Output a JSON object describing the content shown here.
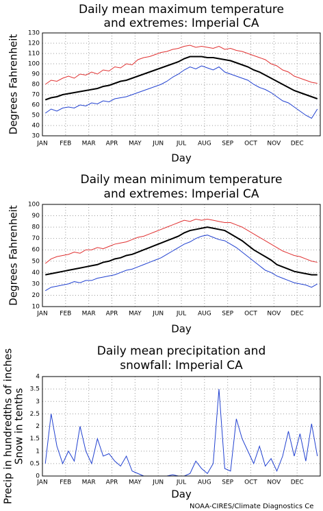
{
  "chart_data": [
    {
      "type": "line",
      "title": [
        "Daily mean maximum temperature",
        "and extremes: Imperial CA"
      ],
      "xlabel": "Day",
      "ylabel": [
        "Degrees Fahrenheit"
      ],
      "categories": [
        "JAN",
        null,
        null,
        null,
        "FEB",
        null,
        null,
        null,
        "MAR",
        null,
        null,
        null,
        "APR",
        null,
        null,
        null,
        "MAY",
        null,
        null,
        null,
        "JUN",
        null,
        null,
        null,
        "JUL",
        null,
        null,
        null,
        "AUG",
        null,
        null,
        null,
        "SEP",
        null,
        null,
        null,
        "OCT",
        null,
        null,
        null,
        "NOV",
        null,
        null,
        null,
        "DEC",
        null,
        null,
        null
      ],
      "ylim": [
        30,
        130
      ],
      "yticks": [
        30,
        40,
        50,
        60,
        70,
        80,
        90,
        100,
        110,
        120,
        130
      ],
      "grid": true,
      "series": [
        {
          "color": "#e03030",
          "values": [
            80,
            84,
            83,
            86,
            88,
            86,
            90,
            89,
            92,
            90,
            94,
            93,
            97,
            96,
            100,
            99,
            104,
            106,
            107,
            109,
            111,
            112,
            114,
            115,
            117,
            118,
            116,
            117,
            116,
            115,
            117,
            114,
            115,
            113,
            112,
            110,
            108,
            106,
            104,
            100,
            98,
            94,
            92,
            88,
            86,
            84,
            82,
            81
          ]
        },
        {
          "color": "#000000",
          "values": [
            65,
            67,
            68,
            70,
            71,
            72,
            73,
            74,
            75,
            76,
            78,
            79,
            81,
            83,
            84,
            86,
            88,
            90,
            92,
            94,
            96,
            98,
            100,
            102,
            105,
            107,
            107,
            107,
            106,
            106,
            105,
            104,
            103,
            101,
            99,
            97,
            94,
            92,
            89,
            86,
            83,
            80,
            77,
            74,
            72,
            70,
            68,
            66
          ]
        },
        {
          "color": "#2040d0",
          "values": [
            52,
            56,
            54,
            57,
            58,
            57,
            60,
            59,
            62,
            61,
            64,
            63,
            66,
            67,
            68,
            70,
            72,
            74,
            76,
            78,
            80,
            83,
            87,
            90,
            94,
            97,
            95,
            98,
            96,
            94,
            97,
            92,
            90,
            88,
            86,
            84,
            80,
            77,
            75,
            72,
            68,
            64,
            62,
            58,
            54,
            50,
            47,
            56
          ]
        }
      ]
    },
    {
      "type": "line",
      "title": [
        "Daily mean minimum temperature",
        "and extremes: Imperial CA"
      ],
      "xlabel": "Day",
      "ylabel": [
        "Degrees Fahrenheit"
      ],
      "categories": [
        "JAN",
        null,
        null,
        null,
        "FEB",
        null,
        null,
        null,
        "MAR",
        null,
        null,
        null,
        "APR",
        null,
        null,
        null,
        "MAY",
        null,
        null,
        null,
        "JUN",
        null,
        null,
        null,
        "JUL",
        null,
        null,
        null,
        "AUG",
        null,
        null,
        null,
        "SEP",
        null,
        null,
        null,
        "OCT",
        null,
        null,
        null,
        "NOV",
        null,
        null,
        null,
        "DEC",
        null,
        null,
        null
      ],
      "ylim": [
        10,
        100
      ],
      "yticks": [
        10,
        20,
        30,
        40,
        50,
        60,
        70,
        80,
        90,
        100
      ],
      "grid": true,
      "series": [
        {
          "color": "#e03030",
          "values": [
            48,
            52,
            54,
            55,
            56,
            58,
            57,
            60,
            60,
            62,
            61,
            63,
            65,
            66,
            67,
            69,
            71,
            72,
            74,
            76,
            78,
            80,
            82,
            84,
            86,
            85,
            87,
            86,
            87,
            86,
            85,
            84,
            84,
            82,
            80,
            77,
            74,
            71,
            68,
            65,
            62,
            59,
            57,
            55,
            54,
            52,
            50,
            49
          ]
        },
        {
          "color": "#000000",
          "values": [
            38,
            39,
            40,
            41,
            42,
            43,
            44,
            45,
            46,
            47,
            49,
            50,
            52,
            53,
            55,
            56,
            58,
            60,
            62,
            64,
            66,
            68,
            70,
            72,
            75,
            77,
            78,
            79,
            80,
            79,
            78,
            77,
            74,
            71,
            68,
            64,
            60,
            57,
            54,
            51,
            47,
            45,
            43,
            41,
            40,
            39,
            38,
            38
          ]
        },
        {
          "color": "#2040d0",
          "values": [
            24,
            27,
            28,
            29,
            30,
            32,
            31,
            33,
            33,
            35,
            36,
            37,
            38,
            40,
            42,
            43,
            45,
            47,
            49,
            51,
            53,
            56,
            59,
            62,
            65,
            67,
            70,
            72,
            73,
            71,
            69,
            68,
            65,
            62,
            58,
            54,
            50,
            46,
            42,
            40,
            37,
            35,
            33,
            31,
            30,
            29,
            27,
            30
          ]
        }
      ]
    },
    {
      "type": "line",
      "title": [
        "Daily mean precipitation and",
        "snowfall: Imperial CA"
      ],
      "xlabel": "Day",
      "ylabel": [
        "Precip in hundredths of inches",
        "Snow in tenths"
      ],
      "categories": [
        "JAN",
        null,
        null,
        null,
        "FEB",
        null,
        null,
        null,
        "MAR",
        null,
        null,
        null,
        "APR",
        null,
        null,
        null,
        "MAY",
        null,
        null,
        null,
        "JUN",
        null,
        null,
        null,
        "JUL",
        null,
        null,
        null,
        "AUG",
        null,
        null,
        null,
        "SEP",
        null,
        null,
        null,
        "OCT",
        null,
        null,
        null,
        "NOV",
        null,
        null,
        null,
        "DEC",
        null,
        null,
        null
      ],
      "ylim": [
        0,
        4
      ],
      "yticks": [
        0,
        0.5,
        1,
        1.5,
        2,
        2.5,
        3,
        3.5,
        4
      ],
      "grid": true,
      "series": [
        {
          "color": "#2040d0",
          "values": [
            0.5,
            2.5,
            1.2,
            0.5,
            1,
            0.6,
            2,
            1,
            0.5,
            1.5,
            0.8,
            0.9,
            0.6,
            0.4,
            0.8,
            0.2,
            0.1,
            0,
            0,
            0,
            0,
            0,
            0.05,
            0,
            0,
            0.1,
            0.6,
            0.3,
            0.1,
            0.5,
            3.5,
            0.3,
            0.2,
            2.3,
            1.5,
            1,
            0.5,
            1.2,
            0.4,
            0.7,
            0.2,
            0.8,
            1.8,
            0.8,
            1.7,
            0.6,
            2.1,
            0.8
          ]
        },
        {
          "color": "#e03030",
          "values": [
            0,
            0,
            0,
            0,
            0,
            0,
            0,
            0,
            0,
            0,
            0,
            0,
            0,
            0,
            0,
            0,
            0,
            0,
            0,
            0,
            0,
            0,
            0,
            0,
            0,
            0,
            0,
            0,
            0,
            0,
            0,
            0,
            0,
            0,
            0,
            0,
            0,
            0,
            0,
            0,
            0,
            0,
            0,
            0,
            0,
            0,
            0,
            0
          ]
        }
      ]
    }
  ],
  "footer": "NOAA-CIRES/Climate Diagnostics Ce"
}
